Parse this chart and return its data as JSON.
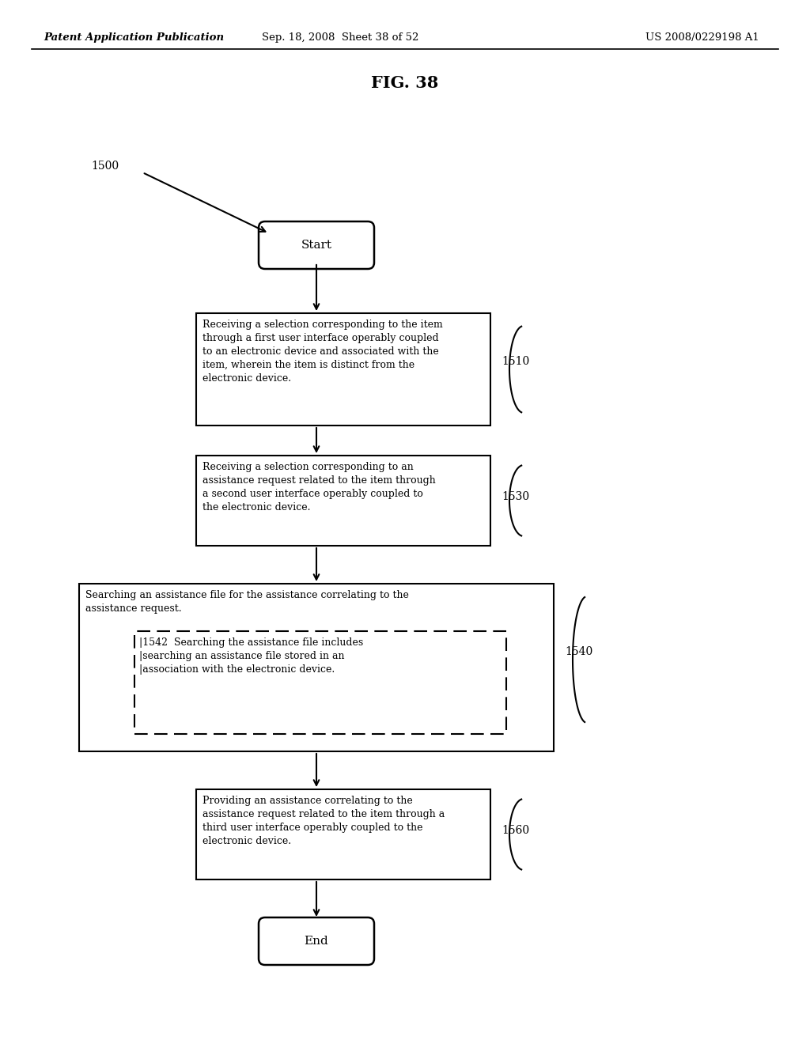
{
  "background_color": "#ffffff",
  "header_left": "Patent Application Publication",
  "header_center": "Sep. 18, 2008  Sheet 38 of 52",
  "header_right": "US 2008/0229198 A1",
  "fig_title": "FIG. 38",
  "fig_label": "1500",
  "start_label": "Start",
  "end_label": "End",
  "box1510_text": "Receiving a selection corresponding to the item\nthrough a first user interface operably coupled\nto an electronic device and associated with the\nitem, wherein the item is distinct from the\nelectronic device.",
  "box1510_ref": "1510",
  "box1530_text": "Receiving a selection corresponding to an\nassistance request related to the item through\na second user interface operably coupled to\nthe electronic device.",
  "box1530_ref": "1530",
  "box1540_outer_text": "Searching an assistance file for the assistance correlating to the\nassistance request.",
  "box1540_inner_text": "|1542  Searching the assistance file includes\n|searching an assistance file stored in an\n|association with the electronic device.",
  "box1540_ref": "1540",
  "box1560_text": "Providing an assistance correlating to the\nassistance request related to the item through a\nthird user interface operably coupled to the\nelectronic device.",
  "box1560_ref": "1560"
}
